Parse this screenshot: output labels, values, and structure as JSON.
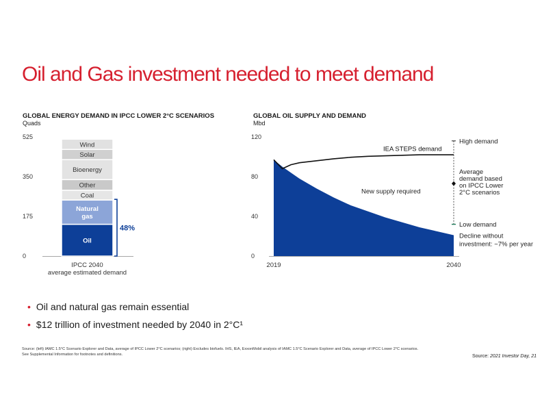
{
  "title": "Oil and Gas investment needed to meet demand",
  "bullets": [
    "Oil and natural gas remain essential",
    "$12 trillion of investment needed by 2040 in 2°C¹"
  ],
  "footnote": {
    "line1": "Source: (left) IAMC 1.5°C Scenario Explorer and Data, average of IPCC Lower 2°C scenarios; (right) Excludes biofuels. IHS, IEA, ExxonMobil analysis of IAMC 1.5°C Scenario Explorer and Data, average of IPCC Lower 2°C scenarios.",
    "line2": "See Supplemental Information for footnotes and definitions."
  },
  "credit": {
    "prefix": "Source: ",
    "italic": "2021 Investor Day, 21"
  },
  "colors": {
    "title_red": "#d6202f",
    "oil": "#0d3f98",
    "natural_gas": "#8ca5d8",
    "coal": "#e6e6e6",
    "other": "#c9c9c9",
    "bioenergy": "#e3e3e3",
    "solar": "#d0d0d0",
    "wind": "#e1e1e1",
    "supply_area": "#0d3f98",
    "bracket": "#0d3f98"
  },
  "chart_data": [
    {
      "type": "bar",
      "stacked": true,
      "title": "GLOBAL ENERGY DEMAND IN IPCC LOWER 2°C SCENARIOS",
      "unit": "Quads",
      "ylim": [
        0,
        525
      ],
      "yticks": [
        "0",
        "175",
        "350",
        "525"
      ],
      "categories": [
        "IPCC 2040",
        "average estimated demand"
      ],
      "segments": [
        {
          "name": "Oil",
          "value": 140,
          "color": "#0d3f98",
          "text_color": "#ffffff",
          "bold": true
        },
        {
          "name": "Natural\ngas",
          "value": 107,
          "color": "#8ca5d8",
          "text_color": "#ffffff",
          "bold": true
        },
        {
          "name": "Coal",
          "value": 43,
          "color": "#e6e6e6",
          "text_color": "#333333",
          "bold": false
        },
        {
          "name": "Other",
          "value": 47,
          "color": "#c9c9c9",
          "text_color": "#333333",
          "bold": false
        },
        {
          "name": "Bioenergy",
          "value": 88,
          "color": "#e3e3e3",
          "text_color": "#333333",
          "bold": false
        },
        {
          "name": "Solar",
          "value": 45,
          "color": "#d0d0d0",
          "text_color": "#333333",
          "bold": false
        },
        {
          "name": "Wind",
          "value": 45,
          "color": "#e1e1e1",
          "text_color": "#333333",
          "bold": false
        }
      ],
      "share_label": "48%",
      "share_range": [
        0,
        250
      ]
    },
    {
      "type": "area",
      "title": "GLOBAL OIL SUPPLY AND DEMAND",
      "unit": "Mbd",
      "ylim": [
        0,
        120
      ],
      "yticks": [
        "0",
        "40",
        "80",
        "120"
      ],
      "xlim": [
        2019,
        2040
      ],
      "xticks": [
        "2019",
        "2040"
      ],
      "supply": {
        "x": [
          2019,
          2020,
          2022,
          2024,
          2026,
          2028,
          2030,
          2032,
          2034,
          2036,
          2038,
          2040
        ],
        "y": [
          97,
          90,
          78,
          68,
          59,
          51,
          45,
          39,
          34,
          29,
          25,
          21
        ]
      },
      "demand": {
        "name": "IEA STEPS demand",
        "x": [
          2019,
          2020,
          2021,
          2022,
          2024,
          2026,
          2028,
          2030,
          2032,
          2034,
          2036,
          2038,
          2040
        ],
        "y": [
          97,
          88,
          92,
          94,
          96,
          98,
          99.5,
          100.5,
          101,
          101.5,
          102,
          102,
          102
        ]
      },
      "range": {
        "high": {
          "value": 116,
          "label": "High demand"
        },
        "average": {
          "value": 73,
          "label": "Average\ndemand based\non IPCC Lower\n2°C scenarios"
        },
        "low": {
          "value": 32,
          "label": "Low demand"
        }
      },
      "annotations": {
        "new_supply": "New supply required",
        "decline": "Decline without\ninvestment: ~7% per year"
      }
    }
  ]
}
